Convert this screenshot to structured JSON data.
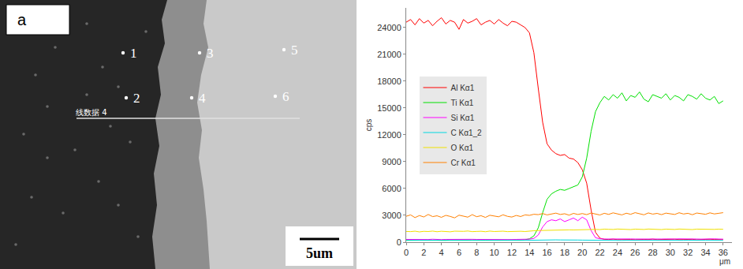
{
  "panel_label": "a",
  "micrograph": {
    "points": [
      "1",
      "2",
      "3",
      "4",
      "5",
      "6"
    ],
    "line_label": "线数据 4",
    "scale_bar": "5um"
  },
  "chart_data": {
    "type": "line",
    "x_label": "μm",
    "y_label": "cps",
    "grid": false,
    "legend": "left",
    "xlim": [
      0,
      37
    ],
    "xticks": [
      0,
      2,
      4,
      6,
      8,
      10,
      12,
      14,
      16,
      18,
      20,
      22,
      24,
      26,
      28,
      30,
      32,
      34,
      36
    ],
    "ylim": [
      0,
      26200
    ],
    "yticks": [
      0,
      3000,
      6000,
      9000,
      12000,
      15000,
      18000,
      21000,
      24000
    ],
    "x": [
      0,
      0.5,
      1,
      1.5,
      2,
      2.5,
      3,
      3.5,
      4,
      4.5,
      5,
      5.5,
      6,
      6.5,
      7,
      7.5,
      8,
      8.5,
      9,
      9.5,
      10,
      10.5,
      11,
      11.5,
      12,
      12.5,
      13,
      13.5,
      14,
      14.5,
      15,
      15.5,
      16,
      16.5,
      17,
      17.5,
      18,
      18.5,
      19,
      19.5,
      20,
      20.5,
      21,
      21.5,
      22,
      22.5,
      23,
      23.5,
      24,
      24.5,
      25,
      25.5,
      26,
      26.5,
      27,
      27.5,
      28,
      28.5,
      29,
      29.5,
      30,
      30.5,
      31,
      31.5,
      32,
      32.5,
      33,
      33.5,
      34,
      34.5,
      35,
      35.5,
      36
    ],
    "series": [
      {
        "name": "Al Kα1",
        "color": "#ff0000",
        "values": [
          24600,
          24900,
          24300,
          25000,
          24500,
          24800,
          24200,
          24700,
          25100,
          24400,
          24800,
          24600,
          23800,
          24900,
          24500,
          24700,
          25000,
          24300,
          24600,
          24800,
          24400,
          24900,
          24500,
          24200,
          24700,
          24600,
          24300,
          24000,
          23400,
          21200,
          17200,
          13400,
          11000,
          10300,
          9900,
          9700,
          9800,
          9400,
          9300,
          8900,
          8100,
          6600,
          3600,
          1100,
          450,
          320,
          300,
          340,
          290,
          310,
          330,
          300,
          280,
          320,
          310,
          300,
          340,
          290,
          310,
          300,
          320,
          330,
          290,
          310,
          300,
          320,
          280,
          310,
          300,
          330,
          300,
          310,
          290
        ]
      },
      {
        "name": "Ti Kα1",
        "color": "#00e000",
        "values": [
          220,
          240,
          210,
          250,
          230,
          220,
          240,
          260,
          230,
          210,
          250,
          230,
          220,
          240,
          230,
          250,
          220,
          240,
          230,
          210,
          250,
          240,
          220,
          230,
          260,
          240,
          250,
          280,
          380,
          700,
          1600,
          3300,
          4800,
          5400,
          5700,
          5900,
          5800,
          6000,
          6200,
          6400,
          7300,
          9400,
          12400,
          14600,
          15600,
          16300,
          15900,
          16500,
          16100,
          16700,
          15800,
          16400,
          16200,
          16800,
          16000,
          15700,
          16500,
          16300,
          16100,
          16600,
          15900,
          16400,
          16200,
          15800,
          16500,
          16300,
          16000,
          16600,
          16100,
          15900,
          16300,
          15500,
          15800
        ]
      },
      {
        "name": "Si Kα1",
        "color": "#ff00ff",
        "values": [
          310,
          300,
          320,
          290,
          310,
          300,
          330,
          300,
          290,
          310,
          320,
          300,
          310,
          290,
          300,
          320,
          310,
          300,
          290,
          310,
          300,
          320,
          310,
          300,
          290,
          310,
          300,
          320,
          340,
          420,
          800,
          1700,
          2300,
          2500,
          2400,
          2600,
          2300,
          2500,
          2700,
          2400,
          2800,
          2500,
          1300,
          500,
          380,
          350,
          360,
          340,
          350,
          370,
          340,
          360,
          350,
          340,
          360,
          350,
          370,
          340,
          350,
          360,
          340,
          350,
          370,
          350,
          340,
          360,
          350,
          340,
          360,
          350,
          370,
          350,
          340
        ]
      },
      {
        "name": "C Kα1_2",
        "color": "#00d8e0",
        "values": [
          200,
          210,
          190,
          200,
          205,
          195,
          200,
          210,
          200,
          190,
          205,
          200,
          195,
          210,
          200,
          200,
          190,
          205,
          210,
          200,
          195,
          200,
          205,
          190,
          200,
          210,
          200,
          205,
          220,
          240,
          260,
          270,
          260,
          250,
          260,
          250,
          260,
          255,
          250,
          240,
          230,
          220,
          210,
          200,
          205,
          200,
          195,
          210,
          200,
          190,
          205,
          200,
          200,
          210,
          195,
          200,
          205,
          190,
          200,
          210,
          200,
          195,
          205,
          200,
          210,
          190,
          200,
          205,
          200,
          195,
          210,
          200,
          200
        ]
      },
      {
        "name": "O Kα1",
        "color": "#f0e000",
        "values": [
          1200,
          1180,
          1230,
          1150,
          1210,
          1190,
          1240,
          1170,
          1220,
          1200,
          1160,
          1230,
          1190,
          1210,
          1250,
          1180,
          1200,
          1220,
          1170,
          1240,
          1190,
          1210,
          1230,
          1180,
          1200,
          1250,
          1220,
          1190,
          1260,
          1280,
          1300,
          1320,
          1310,
          1330,
          1350,
          1340,
          1360,
          1380,
          1370,
          1390,
          1420,
          1400,
          1450,
          1430,
          1410,
          1460,
          1440,
          1420,
          1470,
          1430,
          1450,
          1410,
          1460,
          1440,
          1420,
          1470,
          1430,
          1450,
          1410,
          1460,
          1440,
          1420,
          1470,
          1430,
          1450,
          1410,
          1460,
          1440,
          1420,
          1450,
          1430,
          1460,
          1440
        ]
      },
      {
        "name": "Cr Kα1",
        "color": "#ff8000",
        "values": [
          2900,
          3050,
          2750,
          2980,
          2820,
          3100,
          2860,
          2950,
          2780,
          3000,
          2880,
          2720,
          3020,
          2900,
          2800,
          3080,
          2850,
          2960,
          2770,
          3010,
          2930,
          2840,
          3060,
          2890,
          2810,
          2990,
          2870,
          3050,
          3000,
          3120,
          3080,
          3200,
          3050,
          3150,
          3250,
          3100,
          3180,
          3020,
          3220,
          3100,
          3200,
          3080,
          3260,
          3150,
          3040,
          3230,
          3110,
          3280,
          3170,
          3050,
          3240,
          3120,
          3300,
          3160,
          3060,
          3270,
          3140,
          3220,
          3080,
          3250,
          3180,
          3100,
          3290,
          3150,
          3230,
          3070,
          3260,
          3190,
          3120,
          3280,
          3160,
          3230,
          3300
        ]
      }
    ]
  }
}
